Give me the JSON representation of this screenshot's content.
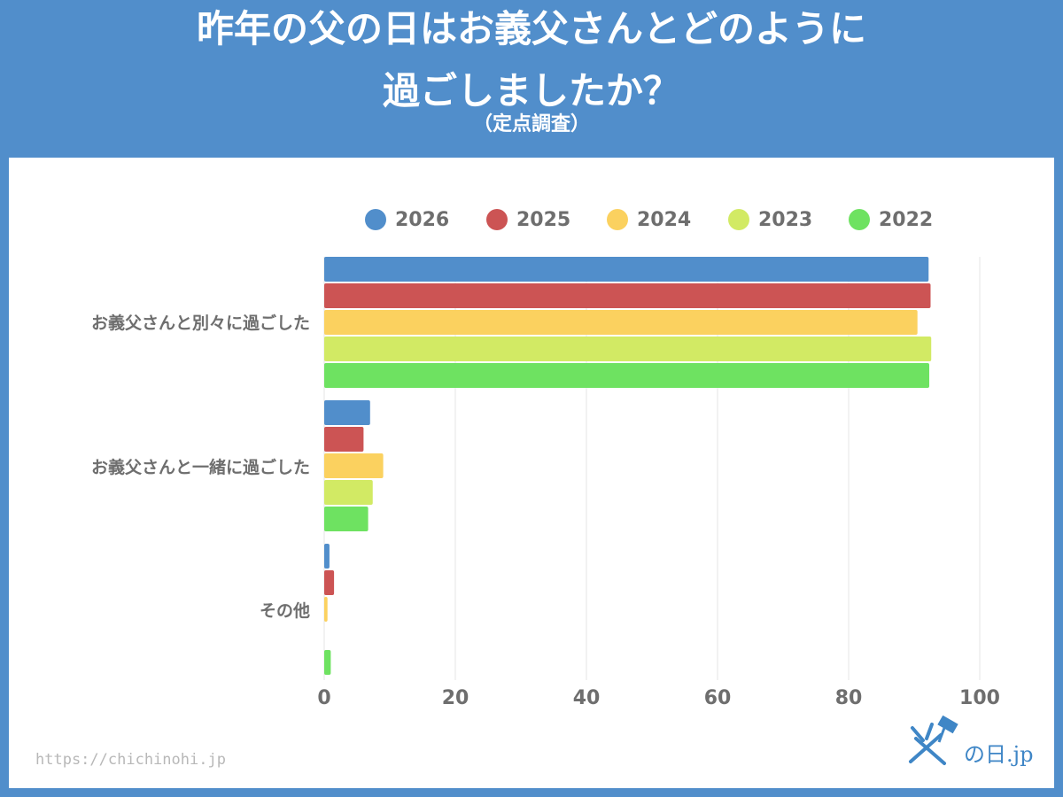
{
  "header": {
    "title_line1": "昨年の父の日はお義父さんとどのように",
    "title_line2": "過ごしましたか？",
    "subtitle": "（定点調査）"
  },
  "footer": {
    "url": "https://chichinohi.jp",
    "brand": "の日.jp"
  },
  "chart_data": {
    "type": "bar",
    "orientation": "horizontal",
    "title": "昨年の父の日はお義父さんとどのように過ごしましたか？",
    "subtitle": "（定点調査）",
    "categories": [
      "お義父さんと別々に過ごした",
      "お義父さんと一緒に過ごした",
      "その他"
    ],
    "series": [
      {
        "name": "2026",
        "color": "#518ecb",
        "values": [
          92.2,
          7.0,
          0.8
        ]
      },
      {
        "name": "2025",
        "color": "#cc5454",
        "values": [
          92.5,
          6.0,
          1.5
        ]
      },
      {
        "name": "2024",
        "color": "#fbd15f",
        "values": [
          90.5,
          9.0,
          0.5
        ]
      },
      {
        "name": "2023",
        "color": "#d2ea64",
        "values": [
          92.6,
          7.4,
          0.0
        ]
      },
      {
        "name": "2022",
        "color": "#6ee261",
        "values": [
          92.3,
          6.7,
          1.0
        ]
      }
    ],
    "xlim": [
      0,
      100
    ],
    "ticks": [
      "0",
      "20",
      "40",
      "60",
      "80",
      "100"
    ],
    "grid": true,
    "legend": "top"
  }
}
